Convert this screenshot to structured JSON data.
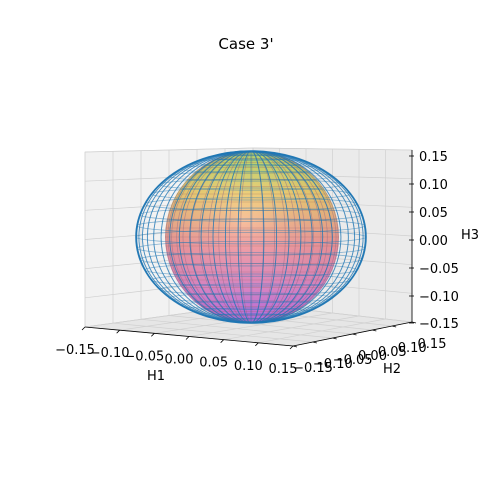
{
  "chart_data": {
    "type": "surface3d",
    "title": "Case 3'",
    "xlabel": "H1",
    "ylabel": "H2",
    "zlabel": "H3",
    "x_ticks": [
      "−0.15",
      "−0.10",
      "−0.05",
      "0.00",
      "0.05",
      "0.10",
      "0.15"
    ],
    "y_ticks": [
      "−0.15",
      "−0.10",
      "−0.05",
      "0.00",
      "0.05",
      "0.10",
      "0.15"
    ],
    "z_ticks": [
      "0.15",
      "0.10",
      "0.05",
      "0.00",
      "−0.05",
      "−0.10",
      "−0.15"
    ],
    "xlim": [
      -0.15,
      0.15
    ],
    "ylim": [
      -0.15,
      0.15
    ],
    "zlim": [
      -0.15,
      0.15
    ],
    "grid": true,
    "series": [
      {
        "kind": "filled-sphere",
        "radius": 0.15,
        "colormap": "spring-cool (pink bottom to yellow-green top)"
      },
      {
        "kind": "wireframe-ellipsoid",
        "semi_axes": [
          0.2,
          0.2,
          0.15
        ],
        "color": "#1f77b4"
      }
    ]
  }
}
